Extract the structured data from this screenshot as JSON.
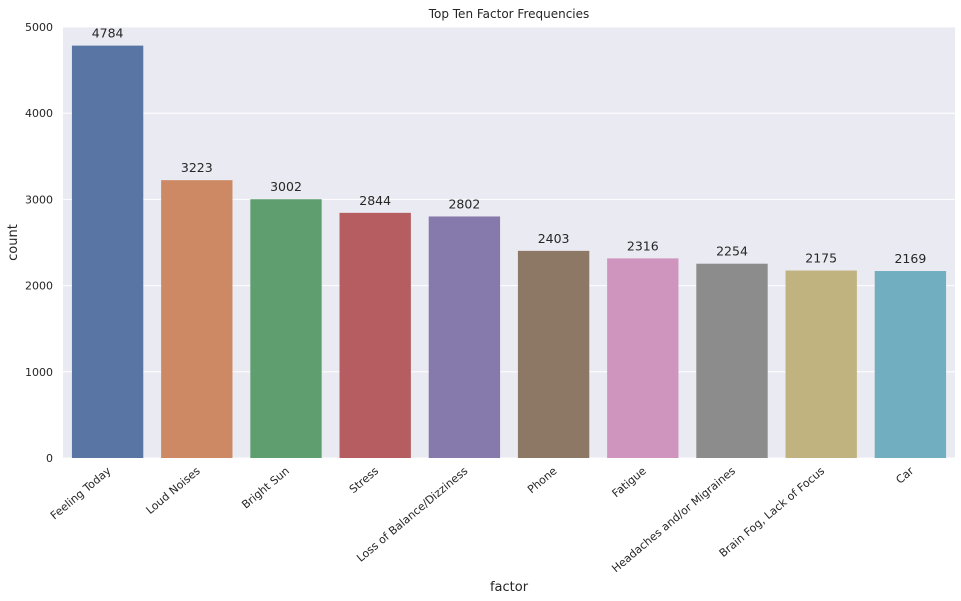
{
  "chart_data": {
    "type": "bar",
    "title": "Top Ten Factor Frequencies",
    "xlabel": "factor",
    "ylabel": "count",
    "ylim": [
      0,
      5000
    ],
    "yticks": [
      0,
      1000,
      2000,
      3000,
      4000,
      5000
    ],
    "grid": true,
    "categories": [
      "Feeling Today",
      "Loud Noises",
      "Bright Sun",
      "Stress",
      "Loss of Balance/Dizziness",
      "Phone",
      "Fatigue",
      "Headaches and/or Migraines",
      "Brain Fog, Lack of Focus",
      "Car"
    ],
    "values": [
      4784,
      3223,
      3002,
      2844,
      2802,
      2403,
      2316,
      2254,
      2175,
      2169
    ],
    "data_labels": [
      "4784",
      "3223",
      "3002",
      "2844",
      "2802",
      "2403",
      "2316",
      "2254",
      "2175",
      "2169"
    ],
    "colors": [
      "#5875a4",
      "#cc8963",
      "#5f9e6e",
      "#b55d60",
      "#857aab",
      "#8d7866",
      "#d095bf",
      "#8c8c8c",
      "#c1b37f",
      "#71aec0"
    ],
    "background_color": "#eaeaf2",
    "grid_color": "#ffffff"
  }
}
